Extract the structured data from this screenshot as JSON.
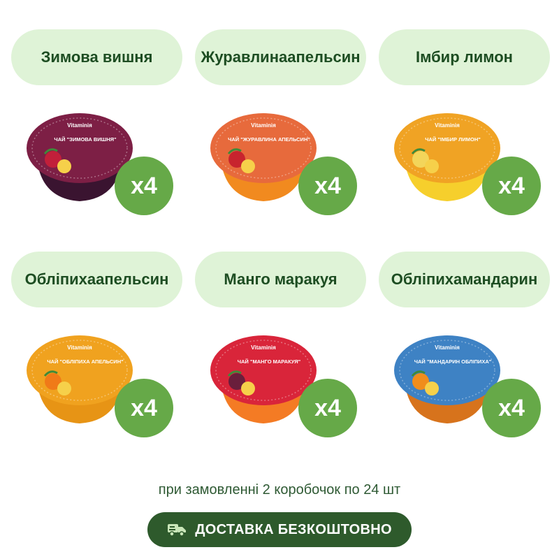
{
  "products": [
    {
      "name_line1": "Зимова вишня",
      "name_line2": "",
      "quantity": "x4",
      "lid_color": "#7d1f45",
      "cup_color": "#3a1430",
      "fruit_color": "#c21f3a",
      "brand": "Vitaminiя",
      "lid_title": "ЧАЙ \"ЗИМОВА ВИШНЯ\""
    },
    {
      "name_line1": "Журавлина",
      "name_line2": "апельсин",
      "quantity": "x4",
      "lid_color": "#e76a3c",
      "cup_color": "#f18a1f",
      "fruit_color": "#c8242e",
      "brand": "Vitaminiя",
      "lid_title": "ЧАЙ \"ЖУРАВЛИНА АПЕЛЬСИН\""
    },
    {
      "name_line1": "Імбир лимон",
      "name_line2": "",
      "quantity": "x4",
      "lid_color": "#f0a324",
      "cup_color": "#f6cf2c",
      "fruit_color": "#f3d55a",
      "brand": "Vitaminiя",
      "lid_title": "ЧАЙ \"ІМБИР ЛИМОН\""
    },
    {
      "name_line1": "Обліпиха",
      "name_line2": "апельсин",
      "quantity": "x4",
      "lid_color": "#f0a21f",
      "cup_color": "#e79415",
      "fruit_color": "#f07a18",
      "brand": "Vitaminiя",
      "lid_title": "ЧАЙ \"ОБЛІПИХА АПЕЛЬСИН\""
    },
    {
      "name_line1": "Манго маракуя",
      "name_line2": "",
      "quantity": "x4",
      "lid_color": "#d9253a",
      "cup_color": "#f47b24",
      "fruit_color": "#6a1e3c",
      "brand": "Vitaminiя",
      "lid_title": "ЧАЙ \"МАНГО МАРАКУЯ\""
    },
    {
      "name_line1": "Обліпиха",
      "name_line2": "мандарин",
      "quantity": "x4",
      "lid_color": "#3e82c4",
      "cup_color": "#d7731c",
      "fruit_color": "#f08d1c",
      "brand": "Vitaminiя",
      "lid_title": "ЧАЙ \"МАНДАРИН ОБЛІПИХА\""
    }
  ],
  "footer": {
    "note": "при замовленні 2 коробочок по 24 шт",
    "delivery_label": "ДОСТАВКА БЕЗКОШТОВНО",
    "delivery_icon": "truck-icon"
  },
  "colors": {
    "pill_bg": "#dff3d7",
    "pill_text": "#1d4d22",
    "badge_bg": "#66a948",
    "button_bg": "#2e5a2c"
  }
}
